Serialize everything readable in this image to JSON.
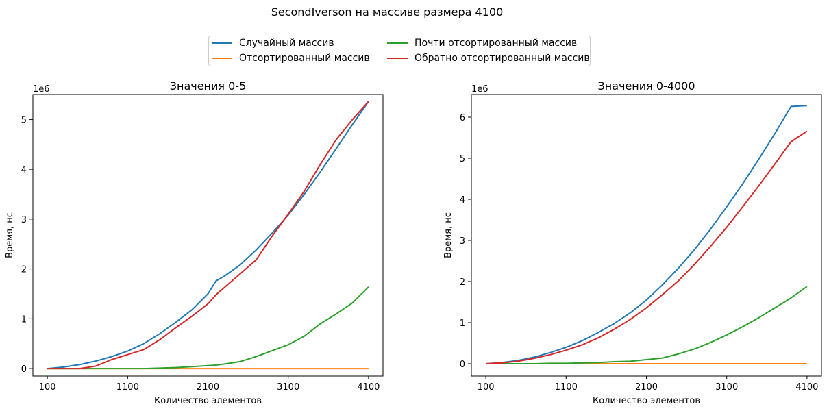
{
  "suptitle": "SecondIverson на массиве размера 4100",
  "legend": [
    {
      "label": "Случайный массив",
      "color": "#1f77b4"
    },
    {
      "label": "Отсортированный массив",
      "color": "#ff7f0e"
    },
    {
      "label": "Почти отсортированный массив",
      "color": "#2ca02c"
    },
    {
      "label": "Обратно отсортированный массив",
      "color": "#d62728"
    }
  ],
  "chart_data": [
    {
      "type": "line",
      "title": "Значения 0-5",
      "xlabel": "Количество элементов",
      "ylabel": "Время, нс",
      "y_multiplier_label": "1e6",
      "xlim": [
        100,
        4100
      ],
      "ylim": [
        -0.15,
        5.5
      ],
      "xticks": [
        100,
        1100,
        2100,
        3100,
        4100
      ],
      "yticks": [
        0,
        1,
        2,
        3,
        4,
        5
      ],
      "x": [
        100,
        300,
        500,
        700,
        900,
        1100,
        1300,
        1500,
        1700,
        1900,
        2100,
        2200,
        2300,
        2500,
        2700,
        2900,
        3100,
        3300,
        3500,
        3700,
        3900,
        4100
      ],
      "series": [
        {
          "name": "Случайный массив",
          "color": "#1f77b4",
          "values": [
            0.0,
            0.03,
            0.08,
            0.15,
            0.24,
            0.35,
            0.5,
            0.7,
            0.93,
            1.18,
            1.5,
            1.76,
            1.85,
            2.08,
            2.38,
            2.72,
            3.08,
            3.5,
            3.95,
            4.42,
            4.9,
            5.36
          ]
        },
        {
          "name": "Отсортированный массив",
          "color": "#ff7f0e",
          "values": [
            0.0,
            0.0,
            0.0,
            0.0,
            0.0,
            0.0,
            0.0,
            0.0,
            0.0,
            0.0,
            0.0,
            0.0,
            0.0,
            0.0,
            0.0,
            0.0,
            0.0,
            0.0,
            0.0,
            0.0,
            0.0,
            0.0
          ]
        },
        {
          "name": "Почти отсортированный массив",
          "color": "#2ca02c",
          "values": [
            0.0,
            0.0,
            0.0,
            0.0,
            0.0,
            0.0,
            0.0,
            0.01,
            0.02,
            0.04,
            0.06,
            0.07,
            0.09,
            0.14,
            0.24,
            0.36,
            0.48,
            0.65,
            0.9,
            1.1,
            1.32,
            1.64
          ]
        },
        {
          "name": "Обратно отсортированный массив",
          "color": "#d62728",
          "values": [
            0.0,
            0.0,
            0.0,
            0.05,
            0.18,
            0.28,
            0.38,
            0.58,
            0.82,
            1.05,
            1.3,
            1.48,
            1.62,
            1.9,
            2.18,
            2.66,
            3.1,
            3.56,
            4.1,
            4.6,
            5.0,
            5.36
          ]
        }
      ]
    },
    {
      "type": "line",
      "title": "Значения 0-4000",
      "xlabel": "Количество элементов",
      "ylabel": "Время, нс",
      "y_multiplier_label": "1e6",
      "xlim": [
        100,
        4100
      ],
      "ylim": [
        -0.3,
        6.55
      ],
      "xticks": [
        100,
        1100,
        2100,
        3100,
        4100
      ],
      "yticks": [
        0,
        1,
        2,
        3,
        4,
        5,
        6
      ],
      "x": [
        100,
        300,
        500,
        700,
        900,
        1100,
        1300,
        1500,
        1700,
        1900,
        2100,
        2300,
        2500,
        2700,
        2900,
        3100,
        3300,
        3500,
        3700,
        3900,
        4100
      ],
      "series": [
        {
          "name": "Случайный массив",
          "color": "#1f77b4",
          "values": [
            0.0,
            0.03,
            0.08,
            0.16,
            0.27,
            0.4,
            0.56,
            0.76,
            0.98,
            1.24,
            1.55,
            1.92,
            2.33,
            2.78,
            3.28,
            3.82,
            4.38,
            4.98,
            5.6,
            6.26,
            6.28
          ]
        },
        {
          "name": "Отсортированный массив",
          "color": "#ff7f0e",
          "values": [
            0.0,
            0.0,
            0.0,
            0.0,
            0.0,
            0.0,
            0.0,
            0.0,
            0.0,
            0.0,
            0.0,
            0.0,
            0.0,
            0.0,
            0.0,
            0.0,
            0.0,
            0.0,
            0.0,
            0.0,
            0.0
          ]
        },
        {
          "name": "Почти отсортированный массив",
          "color": "#2ca02c",
          "values": [
            0.0,
            0.0,
            0.0,
            0.0,
            0.01,
            0.01,
            0.02,
            0.03,
            0.05,
            0.06,
            0.1,
            0.14,
            0.24,
            0.36,
            0.52,
            0.7,
            0.9,
            1.12,
            1.36,
            1.6,
            1.88
          ]
        },
        {
          "name": "Обратно отсортированный массив",
          "color": "#d62728",
          "values": [
            0.0,
            0.02,
            0.06,
            0.13,
            0.22,
            0.33,
            0.46,
            0.63,
            0.84,
            1.08,
            1.36,
            1.68,
            2.02,
            2.42,
            2.86,
            3.32,
            3.82,
            4.33,
            4.86,
            5.4,
            5.66
          ]
        }
      ]
    }
  ]
}
